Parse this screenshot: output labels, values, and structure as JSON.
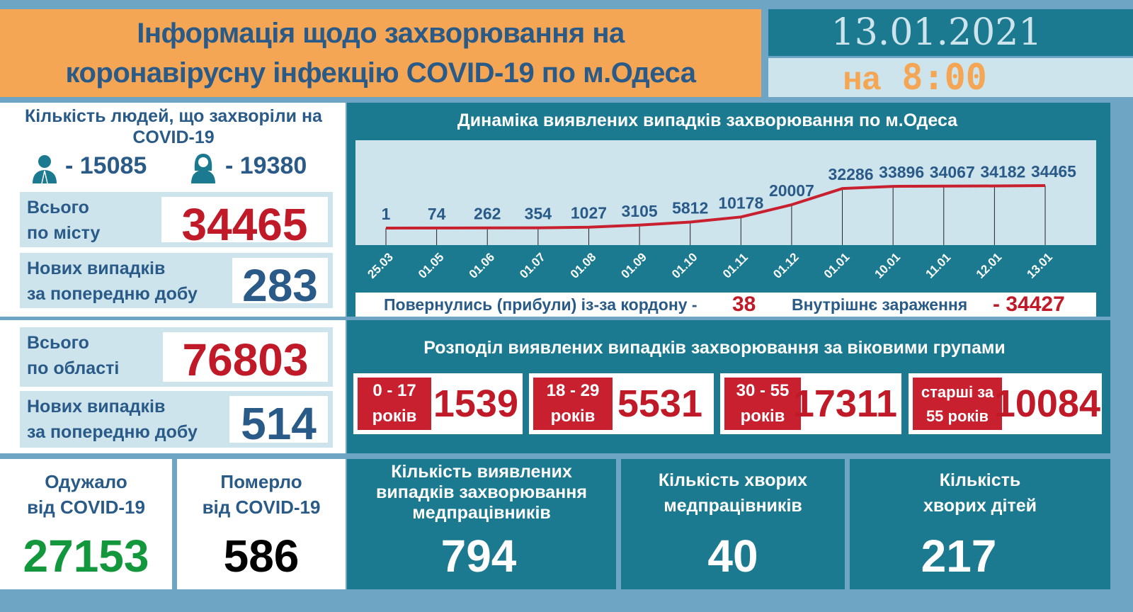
{
  "header": {
    "title_line1": "Інформація щодо захворювання на",
    "title_line2": "коронавірусну інфекцію COVID-19 по м.Одеса",
    "date": "13.01.2021",
    "time_prefix": "на",
    "time": "8:00"
  },
  "colors": {
    "orange": "#f5a654",
    "teal": "#1b7a90",
    "light_blue": "#cde4ec",
    "navy": "#2a5a87",
    "red": "#c01a29",
    "green": "#13973d",
    "frame": "#6ea4c4"
  },
  "city": {
    "sick_title": "Кількість людей, що захворіли на COVID-19",
    "men_icon": "man-icon",
    "men": "- 15085",
    "women_icon": "woman-icon",
    "women": "- 19380",
    "total_label_1": "Всього",
    "total_label_2": "по місту",
    "total": "34465",
    "new_label_1": "Нових випадків",
    "new_label_2": "за попередню добу",
    "new": "283"
  },
  "region": {
    "total_label_1": "Всього",
    "total_label_2": "по області",
    "total": "76803",
    "new_label_1": "Нових випадків",
    "new_label_2": "за попередню добу",
    "new": "514"
  },
  "chart_data": {
    "type": "line",
    "title": "Динаміка виявлених випадків захворювання по м.Одеса",
    "categories": [
      "25.03",
      "01.05",
      "01.06",
      "01.07",
      "01.08",
      "01.09",
      "01.10",
      "01.11",
      "01.12",
      "01.01",
      "10.01",
      "11.01",
      "12.01",
      "13.01"
    ],
    "values": [
      1,
      74,
      262,
      354,
      1027,
      3105,
      5812,
      10178,
      20007,
      32286,
      33896,
      34067,
      34182,
      34465
    ],
    "data_labels": [
      "1",
      "74",
      "262",
      "354",
      "1027",
      "3105",
      "5812",
      "10178",
      "20007",
      "32286",
      "33896",
      "34067",
      "34182",
      "34465"
    ],
    "line_color": "#c8202f"
  },
  "sources": {
    "returned_label": "Повернулись (прибули) із-за кордону -",
    "returned": "38",
    "internal_label": "Внутрішнє зараження",
    "internal": "- 34427"
  },
  "age": {
    "title": "Розподіл виявлених випадків захворювання за віковими групами",
    "groups": [
      {
        "l1": "0 - 17",
        "l2": "років",
        "value": "1539"
      },
      {
        "l1": "18 - 29",
        "l2": "років",
        "value": "5531"
      },
      {
        "l1": "30 - 55",
        "l2": "років",
        "value": "17311"
      },
      {
        "l1": "старші за",
        "l2": "55 років",
        "value": "10084"
      }
    ]
  },
  "recovered": {
    "l1": "Одужало",
    "l2": "від COVID-19",
    "value": "27153"
  },
  "died": {
    "l1": "Померло",
    "l2": "від COVID-19",
    "value": "586"
  },
  "medics_cases": {
    "l1": "Кількість виявлених",
    "l2": "випадків захворювання",
    "l3": "медпрацівників",
    "value": "794"
  },
  "medics_sick": {
    "l1": "Кількість хворих",
    "l2": "медпрацівників",
    "value": "40"
  },
  "children": {
    "l1": "Кількість",
    "l2": "хворих дітей",
    "value": "217"
  }
}
